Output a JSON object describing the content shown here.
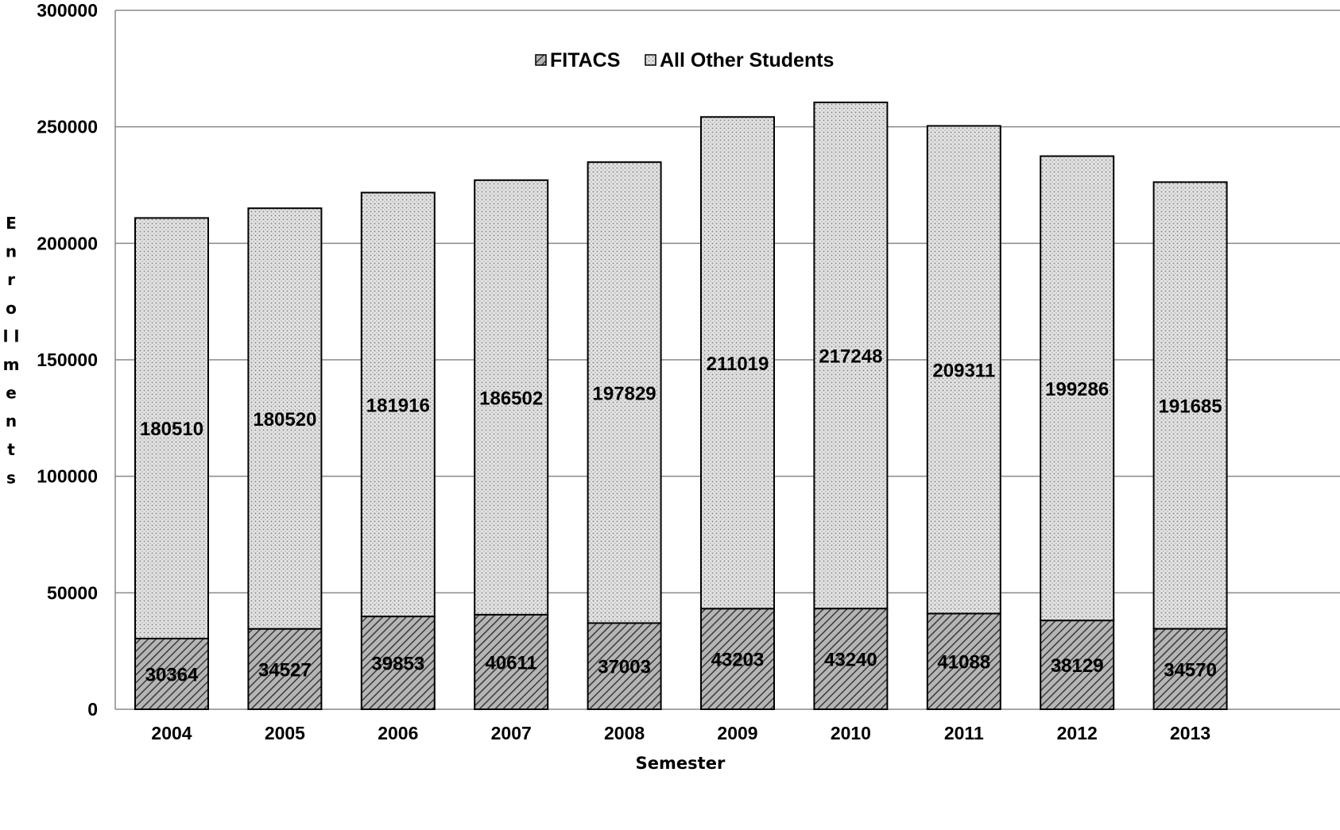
{
  "chart_data": {
    "type": "bar",
    "stacked": true,
    "categories": [
      "2004",
      "2005",
      "2006",
      "2007",
      "2008",
      "2009",
      "2010",
      "2011",
      "2012",
      "2013"
    ],
    "series": [
      {
        "name": "FITACS",
        "pattern": "diagonal-hatch",
        "values": [
          30364,
          34527,
          39853,
          40611,
          37003,
          43203,
          43240,
          41088,
          38129,
          34570
        ]
      },
      {
        "name": "All Other Students",
        "pattern": "dotted",
        "values": [
          180510,
          180520,
          181916,
          186502,
          197829,
          211019,
          217248,
          209311,
          199286,
          191685
        ]
      }
    ],
    "title": "",
    "xlabel": "Semester",
    "ylabel": "Enrollments",
    "ylim": [
      0,
      300000
    ],
    "yticks": [
      "0",
      "50000",
      "100000",
      "150000",
      "200000",
      "250000",
      "300000"
    ],
    "grid": true,
    "legend_position": "top-center",
    "colors": {
      "fitacs": "#9a9a9a",
      "other": "#d6d6d6",
      "outline": "#000000",
      "grid": "#888888"
    }
  }
}
